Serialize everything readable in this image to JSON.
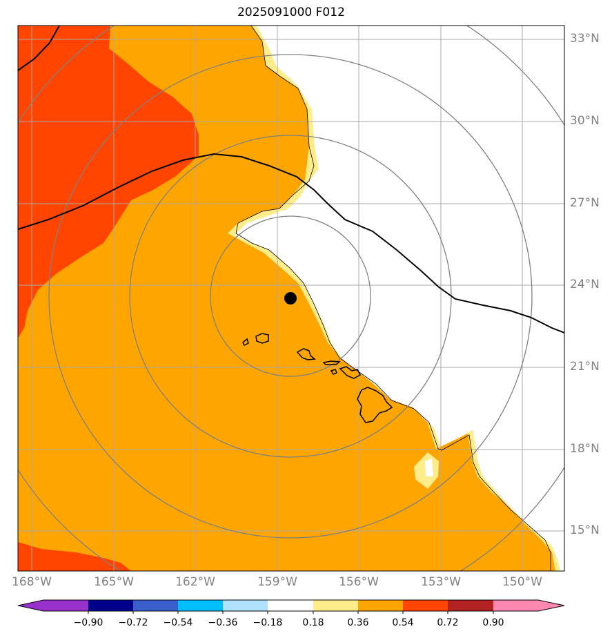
{
  "title": "2025091000 F012",
  "lat_labels": [
    "33°N",
    "30°N",
    "27°N",
    "24°N",
    "21°N",
    "18°N",
    "15°N"
  ],
  "lon_labels": [
    "168°W",
    "165°W",
    "162°W",
    "159°W",
    "156°W",
    "153°W",
    "150°W"
  ],
  "colorbar": {
    "ticks": [
      "−0.90",
      "−0.72",
      "−0.54",
      "−0.36",
      "−0.18",
      "0.18",
      "0.36",
      "0.54",
      "0.72",
      "0.90"
    ],
    "colors": [
      "#9932cc",
      "#00008b",
      "#3a5fcd",
      "#00bfff",
      "#b0e2ff",
      "#ffffff",
      "#ffec8b",
      "#ffa500",
      "#ff4500",
      "#b22222",
      "#ff88b0"
    ]
  },
  "storm_center": {
    "lat": 23.6,
    "lon": -158.5
  }
}
